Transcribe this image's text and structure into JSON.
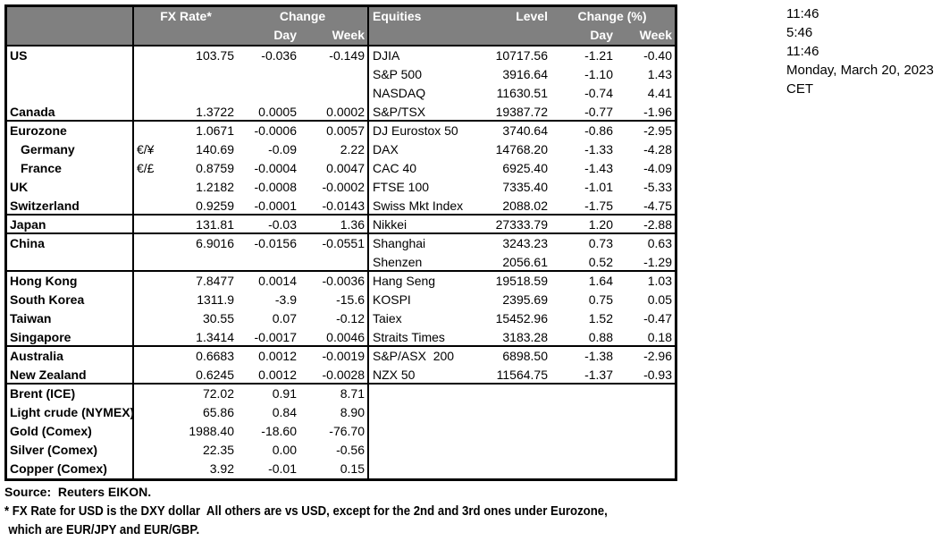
{
  "header": {
    "fx_rate": "FX Rate*",
    "change": "Change",
    "day": "Day",
    "week": "Week",
    "equities": "Equities",
    "level": "Level",
    "change_pct": "Change (%)"
  },
  "colors": {
    "header_bg": "#808080",
    "header_text": "#ffffff",
    "border": "#000000"
  },
  "timestamps": [
    "11:46",
    "5:46",
    "11:46",
    "Monday, March 20, 2023",
    "CET"
  ],
  "rows": [
    {
      "label": "US",
      "pair": "",
      "rate": "103.75",
      "day": "-0.036",
      "week": "-0.149",
      "eq": "DJIA",
      "level": "10717.56",
      "eday": "-1.21",
      "eweek": "-0.40",
      "indent": false,
      "section_end": false
    },
    {
      "label": "",
      "pair": "",
      "rate": "",
      "day": "",
      "week": "",
      "eq": "S&P 500",
      "level": "3916.64",
      "eday": "-1.10",
      "eweek": "1.43",
      "indent": false,
      "section_end": false
    },
    {
      "label": "",
      "pair": "",
      "rate": "",
      "day": "",
      "week": "",
      "eq": "NASDAQ",
      "level": "11630.51",
      "eday": "-0.74",
      "eweek": "4.41",
      "indent": false,
      "section_end": false
    },
    {
      "label": "Canada",
      "pair": "",
      "rate": "1.3722",
      "day": "0.0005",
      "week": "0.0002",
      "eq": "S&P/TSX",
      "level": "19387.72",
      "eday": "-0.77",
      "eweek": "-1.96",
      "indent": false,
      "section_end": true
    },
    {
      "label": "Eurozone",
      "pair": "",
      "rate": "1.0671",
      "day": "-0.0006",
      "week": "0.0057",
      "eq": "DJ Eurostox 50",
      "level": "3740.64",
      "eday": "-0.86",
      "eweek": "-2.95",
      "indent": false,
      "section_end": false
    },
    {
      "label": "Germany",
      "pair": "€/¥",
      "rate": "140.69",
      "day": "-0.09",
      "week": "2.22",
      "eq": "DAX",
      "level": "14768.20",
      "eday": "-1.33",
      "eweek": "-4.28",
      "indent": true,
      "section_end": false
    },
    {
      "label": "France",
      "pair": "€/£",
      "rate": "0.8759",
      "day": "-0.0004",
      "week": "0.0047",
      "eq": "CAC 40",
      "level": "6925.40",
      "eday": "-1.43",
      "eweek": "-4.09",
      "indent": true,
      "section_end": false
    },
    {
      "label": "UK",
      "pair": "",
      "rate": "1.2182",
      "day": "-0.0008",
      "week": "-0.0002",
      "eq": "FTSE 100",
      "level": "7335.40",
      "eday": "-1.01",
      "eweek": "-5.33",
      "indent": false,
      "section_end": false
    },
    {
      "label": "Switzerland",
      "pair": "",
      "rate": "0.9259",
      "day": "-0.0001",
      "week": "-0.0143",
      "eq": "Swiss Mkt Index",
      "level": "2088.02",
      "eday": "-1.75",
      "eweek": "-4.75",
      "indent": false,
      "section_end": true
    },
    {
      "label": "Japan",
      "pair": "",
      "rate": "131.81",
      "day": "-0.03",
      "week": "1.36",
      "eq": "Nikkei",
      "level": "27333.79",
      "eday": "1.20",
      "eweek": "-2.88",
      "indent": false,
      "section_end": true
    },
    {
      "label": "China",
      "pair": "",
      "rate": "6.9016",
      "day": "-0.0156",
      "week": "-0.0551",
      "eq": "Shanghai",
      "level": "3243.23",
      "eday": "0.73",
      "eweek": "0.63",
      "indent": false,
      "section_end": false
    },
    {
      "label": "",
      "pair": "",
      "rate": "",
      "day": "",
      "week": "",
      "eq": "Shenzen",
      "level": "2056.61",
      "eday": "0.52",
      "eweek": "-1.29",
      "indent": false,
      "section_end": true
    },
    {
      "label": "Hong Kong",
      "pair": "",
      "rate": "7.8477",
      "day": "0.0014",
      "week": "-0.0036",
      "eq": "Hang Seng",
      "level": "19518.59",
      "eday": "1.64",
      "eweek": "1.03",
      "indent": false,
      "section_end": false
    },
    {
      "label": "South Korea",
      "pair": "",
      "rate": "1311.9",
      "day": "-3.9",
      "week": "-15.6",
      "eq": "KOSPI",
      "level": "2395.69",
      "eday": "0.75",
      "eweek": "0.05",
      "indent": false,
      "section_end": false
    },
    {
      "label": "Taiwan",
      "pair": "",
      "rate": "30.55",
      "day": "0.07",
      "week": "-0.12",
      "eq": "Taiex",
      "level": "15452.96",
      "eday": "1.52",
      "eweek": "-0.47",
      "indent": false,
      "section_end": false
    },
    {
      "label": "Singapore",
      "pair": "",
      "rate": "1.3414",
      "day": "-0.0017",
      "week": "0.0046",
      "eq": "Straits Times",
      "level": "3183.28",
      "eday": "0.88",
      "eweek": "0.18",
      "indent": false,
      "section_end": true
    },
    {
      "label": "Australia",
      "pair": "",
      "rate": "0.6683",
      "day": "0.0012",
      "week": "-0.0019",
      "eq": "S&P/ASX  200",
      "level": "6898.50",
      "eday": "-1.38",
      "eweek": "-2.96",
      "indent": false,
      "section_end": false
    },
    {
      "label": "New Zealand",
      "pair": "",
      "rate": "0.6245",
      "day": "0.0012",
      "week": "-0.0028",
      "eq": "NZX 50",
      "level": "11564.75",
      "eday": "-1.37",
      "eweek": "-0.93",
      "indent": false,
      "section_end": true
    },
    {
      "label": "Brent (ICE)",
      "pair": "",
      "rate": "72.02",
      "day": "0.91",
      "week": "8.71",
      "eq": "",
      "level": "",
      "eday": "",
      "eweek": "",
      "indent": false,
      "section_end": false
    },
    {
      "label": "Light crude (NYMEX)",
      "pair": "",
      "rate": "65.86",
      "day": "0.84",
      "week": "8.90",
      "eq": "",
      "level": "",
      "eday": "",
      "eweek": "",
      "indent": false,
      "section_end": false
    },
    {
      "label": "Gold (Comex)",
      "pair": "",
      "rate": "1988.40",
      "day": "-18.60",
      "week": "-76.70",
      "eq": "",
      "level": "",
      "eday": "",
      "eweek": "",
      "indent": false,
      "section_end": false
    },
    {
      "label": "Silver (Comex)",
      "pair": "",
      "rate": "22.35",
      "day": "0.00",
      "week": "-0.56",
      "eq": "",
      "level": "",
      "eday": "",
      "eweek": "",
      "indent": false,
      "section_end": false
    },
    {
      "label": "Copper (Comex)",
      "pair": "",
      "rate": "3.92",
      "day": "-0.01",
      "week": "0.15",
      "eq": "",
      "level": "",
      "eday": "",
      "eweek": "",
      "indent": false,
      "section_end": false
    }
  ],
  "footer": {
    "source": "Source:  Reuters EIKON.",
    "note1": "* FX Rate for USD is the DXY dollar  All others are vs USD, except for the 2nd and 3rd ones under Eurozone,",
    "note2": "which are EUR/JPY and EUR/GBP."
  }
}
